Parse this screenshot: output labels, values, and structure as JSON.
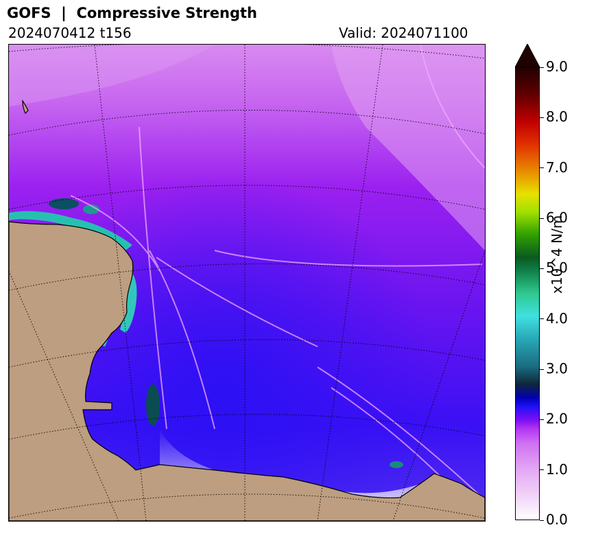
{
  "header": {
    "title": "GOFS  |  Compressive Strength",
    "run": "2024070412 t156",
    "valid": "Valid: 2024071100"
  },
  "colorbar": {
    "label": "x10^4 N/m",
    "min": 0.0,
    "max": 9.0,
    "extend": "max",
    "ticks": [
      "0.0",
      "1.0",
      "2.0",
      "3.0",
      "4.0",
      "5.0",
      "6.0",
      "7.0",
      "8.0",
      "9.0"
    ]
  },
  "map": {
    "land_color": "#bd9e80",
    "graticule": "dotted black lines",
    "projection": "polar stereographic"
  }
}
